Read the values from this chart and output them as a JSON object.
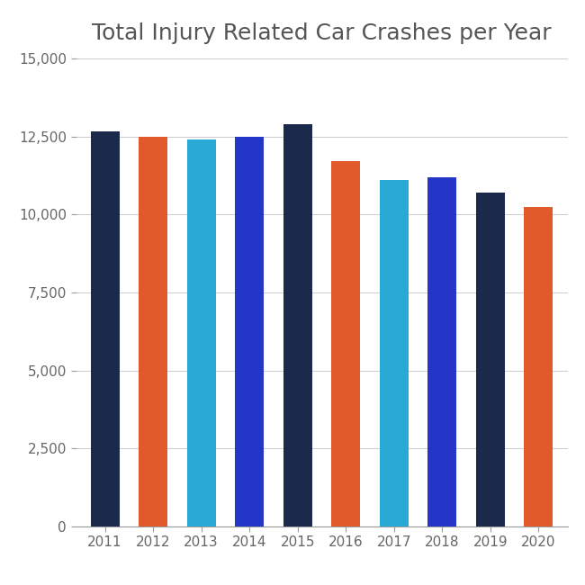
{
  "title": "Total Injury Related Car Crashes per Year",
  "years": [
    2011,
    2012,
    2013,
    2014,
    2015,
    2016,
    2017,
    2018,
    2019,
    2020
  ],
  "values": [
    12650,
    12500,
    12400,
    12500,
    12900,
    11700,
    11100,
    11200,
    10700,
    10250
  ],
  "colors": [
    "#1b2a4a",
    "#e05a2b",
    "#29aad4",
    "#2336c8",
    "#1b2a4a",
    "#e05a2b",
    "#29aad4",
    "#2336c8",
    "#1b2a4a",
    "#e05a2b"
  ],
  "ylim": [
    0,
    15000
  ],
  "yticks": [
    0,
    2500,
    5000,
    7500,
    10000,
    12500,
    15000
  ],
  "title_color": "#555555",
  "title_fontsize": 18,
  "tick_label_color": "#666666",
  "tick_label_size": 11,
  "background_color": "#ffffff",
  "grid_color": "#cccccc",
  "bar_width": 0.6
}
